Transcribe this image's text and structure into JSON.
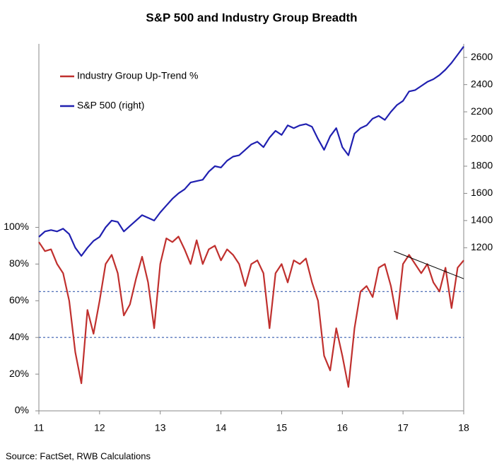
{
  "chart_data": {
    "type": "line",
    "title": "S&P 500 and Industry Group Breadth",
    "source": "Source: FactSet, RWB Calculations",
    "x": [
      11.0,
      11.1,
      11.2,
      11.3,
      11.4,
      11.5,
      11.6,
      11.7,
      11.8,
      11.9,
      12.0,
      12.1,
      12.2,
      12.3,
      12.4,
      12.5,
      12.6,
      12.7,
      12.8,
      12.9,
      13.0,
      13.1,
      13.2,
      13.3,
      13.4,
      13.5,
      13.6,
      13.7,
      13.8,
      13.9,
      14.0,
      14.1,
      14.2,
      14.3,
      14.4,
      14.5,
      14.6,
      14.7,
      14.8,
      14.9,
      15.0,
      15.1,
      15.2,
      15.3,
      15.4,
      15.5,
      15.6,
      15.7,
      15.8,
      15.9,
      16.0,
      16.1,
      16.2,
      16.3,
      16.4,
      16.5,
      16.6,
      16.7,
      16.8,
      16.9,
      17.0,
      17.1,
      17.2,
      17.3,
      17.4,
      17.5,
      17.6,
      17.7,
      17.8,
      17.9,
      18.0
    ],
    "series": [
      {
        "name": "Industry Group Up-Trend %",
        "color": "#c0302e",
        "axis": "y",
        "values": [
          92,
          87,
          88,
          80,
          75,
          60,
          32,
          15,
          55,
          42,
          60,
          80,
          85,
          75,
          52,
          58,
          72,
          84,
          70,
          45,
          80,
          94,
          92,
          95,
          88,
          80,
          93,
          80,
          88,
          90,
          82,
          88,
          85,
          80,
          68,
          80,
          82,
          75,
          45,
          75,
          80,
          70,
          82,
          80,
          83,
          70,
          60,
          30,
          22,
          45,
          30,
          13,
          45,
          65,
          68,
          62,
          78,
          80,
          68,
          50,
          80,
          85,
          80,
          75,
          80,
          70,
          65,
          78,
          56,
          78,
          82
        ]
      },
      {
        "name": "S&P 500 (right)",
        "color": "#2020b0",
        "axis": "y2",
        "values": [
          1280,
          1320,
          1330,
          1320,
          1340,
          1300,
          1200,
          1140,
          1200,
          1250,
          1280,
          1350,
          1400,
          1390,
          1320,
          1360,
          1400,
          1440,
          1420,
          1400,
          1460,
          1510,
          1560,
          1600,
          1630,
          1680,
          1690,
          1700,
          1760,
          1800,
          1790,
          1840,
          1870,
          1880,
          1920,
          1960,
          1980,
          1940,
          2010,
          2060,
          2030,
          2100,
          2080,
          2100,
          2110,
          2090,
          2000,
          1920,
          2020,
          2080,
          1940,
          1880,
          2040,
          2080,
          2100,
          2150,
          2170,
          2140,
          2200,
          2250,
          2280,
          2350,
          2360,
          2390,
          2420,
          2440,
          2470,
          2510,
          2560,
          2620,
          2680
        ]
      }
    ],
    "xlim": [
      11,
      18
    ],
    "xticks": [
      11,
      12,
      13,
      14,
      15,
      16,
      17,
      18
    ],
    "ylim": [
      0,
      200
    ],
    "yticks": [
      {
        "value": 0,
        "label": "0%"
      },
      {
        "value": 20,
        "label": "20%"
      },
      {
        "value": 40,
        "label": "40%"
      },
      {
        "value": 60,
        "label": "60%"
      },
      {
        "value": 80,
        "label": "80%"
      },
      {
        "value": 100,
        "label": "100%"
      }
    ],
    "y2lim": [
      0,
      2700
    ],
    "y2ticks": [
      1200,
      1400,
      1600,
      1800,
      2000,
      2200,
      2400,
      2600
    ],
    "reference_lines": [
      65,
      40
    ],
    "reference_color": "#3a5fb0",
    "trendline": {
      "x": [
        16.85,
        18
      ],
      "y": [
        87,
        72
      ],
      "color": "#000000"
    },
    "legend": "upper left",
    "grid": false
  }
}
